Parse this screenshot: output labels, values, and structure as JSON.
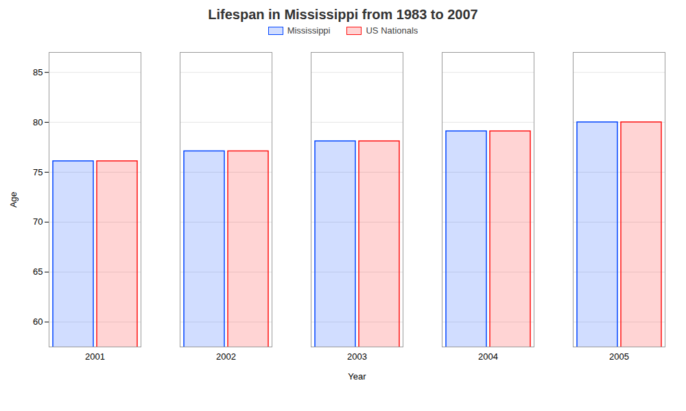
{
  "chart_data": {
    "type": "bar",
    "title": "Lifespan in Mississippi from 1983 to 2007",
    "xlabel": "Year",
    "ylabel": "Age",
    "categories": [
      "2001",
      "2002",
      "2003",
      "2004",
      "2005"
    ],
    "series": [
      {
        "name": "Mississippi",
        "color": "#0044ff",
        "values": [
          76.1,
          77.1,
          78.1,
          79.1,
          80.0
        ]
      },
      {
        "name": "US Nationals",
        "color": "#ff1111",
        "values": [
          76.1,
          77.1,
          78.1,
          79.1,
          80.0
        ]
      }
    ],
    "ylim": [
      57.5,
      87
    ],
    "yticks": [
      60,
      65,
      70,
      75,
      80,
      85
    ],
    "grid": true,
    "legend": "top"
  }
}
